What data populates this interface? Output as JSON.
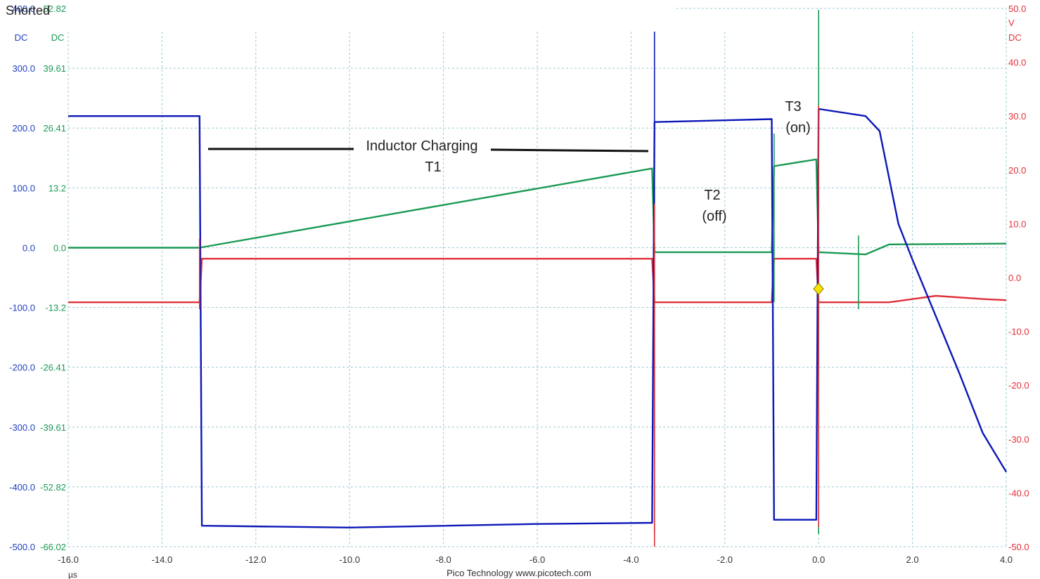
{
  "title": "Shorted",
  "footer": {
    "brand": "Pico Technology   www.picotech.com",
    "unit": "µs"
  },
  "axes": {
    "left_blue": {
      "coupling": "DC",
      "color": "#1f3fbf",
      "ticks": [
        "400.0",
        "300.0",
        "200.0",
        "100.0",
        "0.0",
        "-100.0",
        "-200.0",
        "-300.0",
        "-400.0",
        "-500.0"
      ]
    },
    "left_green": {
      "coupling": "DC",
      "color": "#1a9a54",
      "ticks": [
        "52.82",
        "39.61",
        "26.41",
        "13.2",
        "0.0",
        "-13.2",
        "-26.41",
        "-39.61",
        "-52.82",
        "-66.02"
      ]
    },
    "right_red": {
      "coupling": "DC",
      "unit": "V",
      "color": "#e0303a",
      "ticks": [
        "50.0",
        "40.0",
        "30.0",
        "20.0",
        "10.0",
        "0.0",
        "-10.0",
        "-20.0",
        "-30.0",
        "-40.0",
        "-50.0"
      ]
    },
    "x": {
      "ticks": [
        "-16.0",
        "-14.0",
        "-12.0",
        "-10.0",
        "-8.0",
        "-6.0",
        "-4.0",
        "-2.0",
        "0.0",
        "2.0",
        "4.0"
      ]
    }
  },
  "annotations": {
    "inductor": "Inductor Charging",
    "t1": "T1",
    "t2": "T2",
    "t2_sub": "(off)",
    "t3": "T3",
    "t3_sub": "(on)"
  },
  "chart_data": {
    "type": "line",
    "title": "Shorted",
    "xlabel": "µs",
    "xlim": [
      -16.0,
      4.0
    ],
    "grid": true,
    "series": [
      {
        "color": "#0b17b8",
        "axis": "left_blue",
        "ylim": [
          -500,
          400
        ],
        "points": [
          [
            -16,
            220
          ],
          [
            -13.2,
            220
          ],
          [
            -13.15,
            -465
          ],
          [
            -10,
            -468
          ],
          [
            -6,
            -462
          ],
          [
            -3.55,
            -460
          ],
          [
            -3.5,
            210
          ],
          [
            -1,
            215
          ],
          [
            -0.95,
            -455
          ],
          [
            -0.05,
            -455
          ],
          [
            0,
            232
          ],
          [
            1,
            220
          ],
          [
            1.3,
            195
          ],
          [
            1.7,
            40
          ],
          [
            2,
            -20
          ],
          [
            2.5,
            -115
          ],
          [
            3,
            -210
          ],
          [
            3.5,
            -310
          ],
          [
            4,
            -375
          ]
        ]
      },
      {
        "color": "#1a9a54",
        "axis": "left_green",
        "ylim": [
          -66.02,
          52.82
        ],
        "points": [
          [
            -16,
            0
          ],
          [
            -13.2,
            0
          ],
          [
            -3.55,
            17.5
          ],
          [
            -3.5,
            -1
          ],
          [
            -1,
            -1
          ],
          [
            -0.95,
            18
          ],
          [
            -0.05,
            19.5
          ],
          [
            0,
            -1
          ],
          [
            1,
            -1.5
          ],
          [
            1.5,
            0.7
          ],
          [
            4,
            0.9
          ]
        ]
      },
      {
        "color": "#e0303a",
        "axis": "right_red",
        "ylim": [
          -50,
          50
        ],
        "points": [
          [
            -16,
            -4.6
          ],
          [
            -13.2,
            -4.6
          ],
          [
            -13.15,
            3.5
          ],
          [
            -3.55,
            3.5
          ],
          [
            -3.5,
            -4.6
          ],
          [
            -1,
            -4.6
          ],
          [
            -0.95,
            3.5
          ],
          [
            -0.05,
            3.5
          ],
          [
            0,
            -4.6
          ],
          [
            1.5,
            -4.6
          ],
          [
            2.5,
            -3.4
          ],
          [
            3.5,
            -4.0
          ],
          [
            4,
            -4.2
          ]
        ]
      }
    ]
  }
}
